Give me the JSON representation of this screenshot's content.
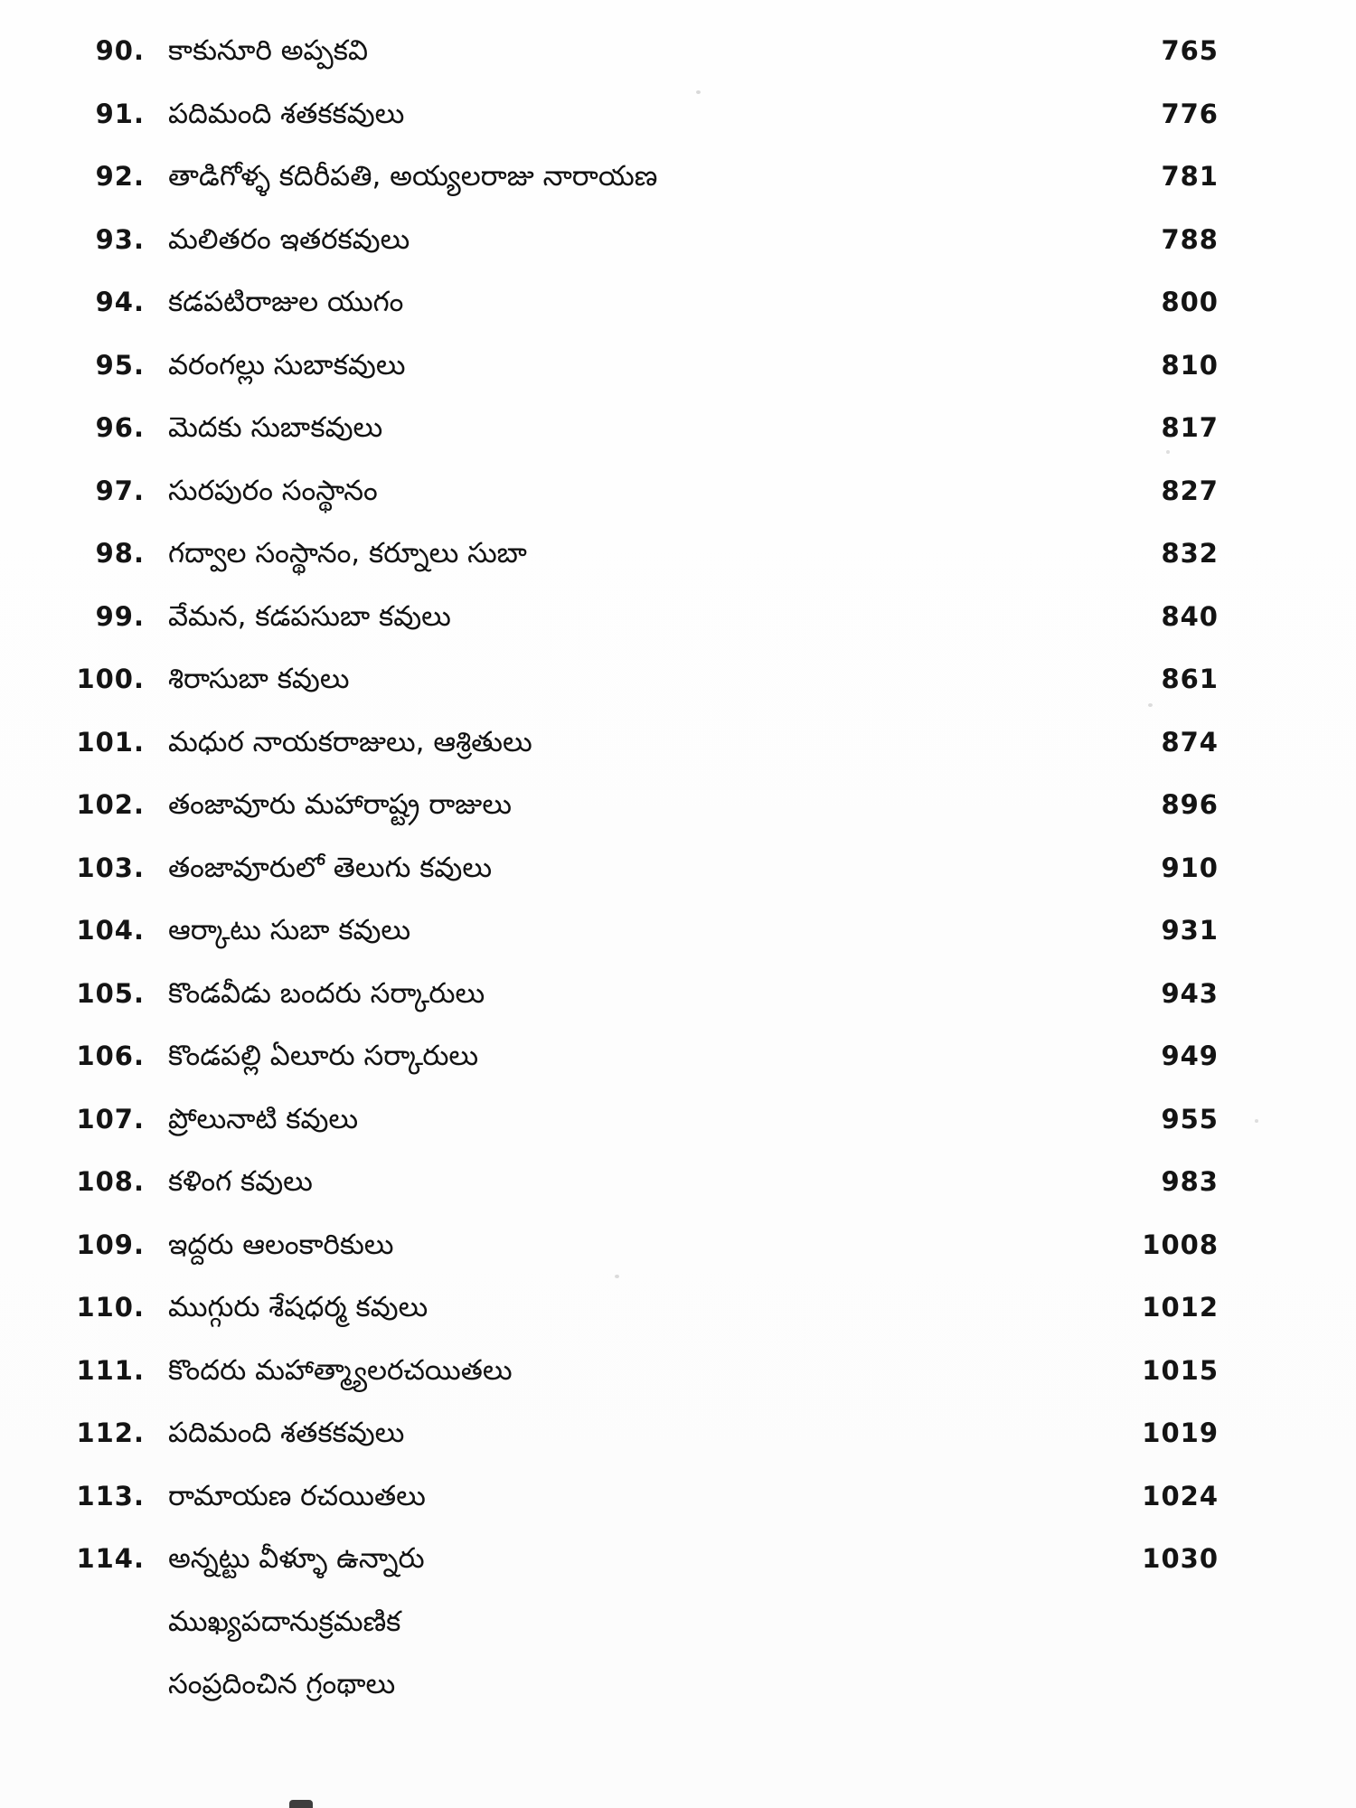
{
  "document": {
    "kind": "scanned-book-table-of-contents",
    "language": "Telugu",
    "text_color": "#121212",
    "background_color": "#fdfdfd",
    "entries": [
      {
        "no": "90.",
        "title": "కాకునూరి అప్పకవి",
        "page": "765"
      },
      {
        "no": "91.",
        "title": "పదిమంది శతకకవులు",
        "page": "776"
      },
      {
        "no": "92.",
        "title": "తాడిగోళ్ళ కదిరీపతి, అయ్యలరాజు నారాయణ",
        "page": "781"
      },
      {
        "no": "93.",
        "title": "మలితరం ఇతరకవులు",
        "page": "788"
      },
      {
        "no": "94.",
        "title": "కడపటిరాజుల యుగం",
        "page": "800"
      },
      {
        "no": "95.",
        "title": "వరంగల్లు సుబాకవులు",
        "page": "810"
      },
      {
        "no": "96.",
        "title": "మెదకు సుబాకవులు",
        "page": "817"
      },
      {
        "no": "97.",
        "title": "సురపురం సంస్థానం",
        "page": "827"
      },
      {
        "no": "98.",
        "title": "గద్వాల సంస్థానం, కర్నూలు సుబా",
        "page": "832"
      },
      {
        "no": "99.",
        "title": "వేమన, కడపసుబా కవులు",
        "page": "840"
      },
      {
        "no": "100.",
        "title": "శిరాసుబా కవులు",
        "page": "861"
      },
      {
        "no": "101.",
        "title": "మధుర నాయకరాజులు, ఆశ్రితులు",
        "page": "874"
      },
      {
        "no": "102.",
        "title": "తంజావూరు మహారాష్ట్ర రాజులు",
        "page": "896"
      },
      {
        "no": "103.",
        "title": "తంజావూరులో తెలుగు కవులు",
        "page": "910"
      },
      {
        "no": "104.",
        "title": "ఆర్కాటు సుబా కవులు",
        "page": "931"
      },
      {
        "no": "105.",
        "title": "కొండవీడు బందరు సర్కారులు",
        "page": "943"
      },
      {
        "no": "106.",
        "title": "కొండపల్లి ఏలూరు సర్కారులు",
        "page": "949"
      },
      {
        "no": "107.",
        "title": "ప్రోలునాటి కవులు",
        "page": "955"
      },
      {
        "no": "108.",
        "title": "కళింగ కవులు",
        "page": "983"
      },
      {
        "no": "109.",
        "title": "ఇద్దరు ఆలంకారికులు",
        "page": "1008"
      },
      {
        "no": "110.",
        "title": "ముగ్గురు శేషధర్మ కవులు",
        "page": "1012"
      },
      {
        "no": "111.",
        "title": "కొందరు మహాత్మ్యాలరచయితలు",
        "page": "1015"
      },
      {
        "no": "112.",
        "title": "పదిమంది శతకకవులు",
        "page": "1019"
      },
      {
        "no": "113.",
        "title": "రామాయణ రచయితలు",
        "page": "1024"
      },
      {
        "no": "114.",
        "title": "అన్నట్టు వీళ్ళూ ఉన్నారు",
        "page": "1030"
      },
      {
        "no": "",
        "title": "ముఖ్యపదానుక్రమణిక",
        "page": ""
      },
      {
        "no": "",
        "title": "సంప్రదించిన గ్రంథాలు",
        "page": ""
      }
    ]
  }
}
